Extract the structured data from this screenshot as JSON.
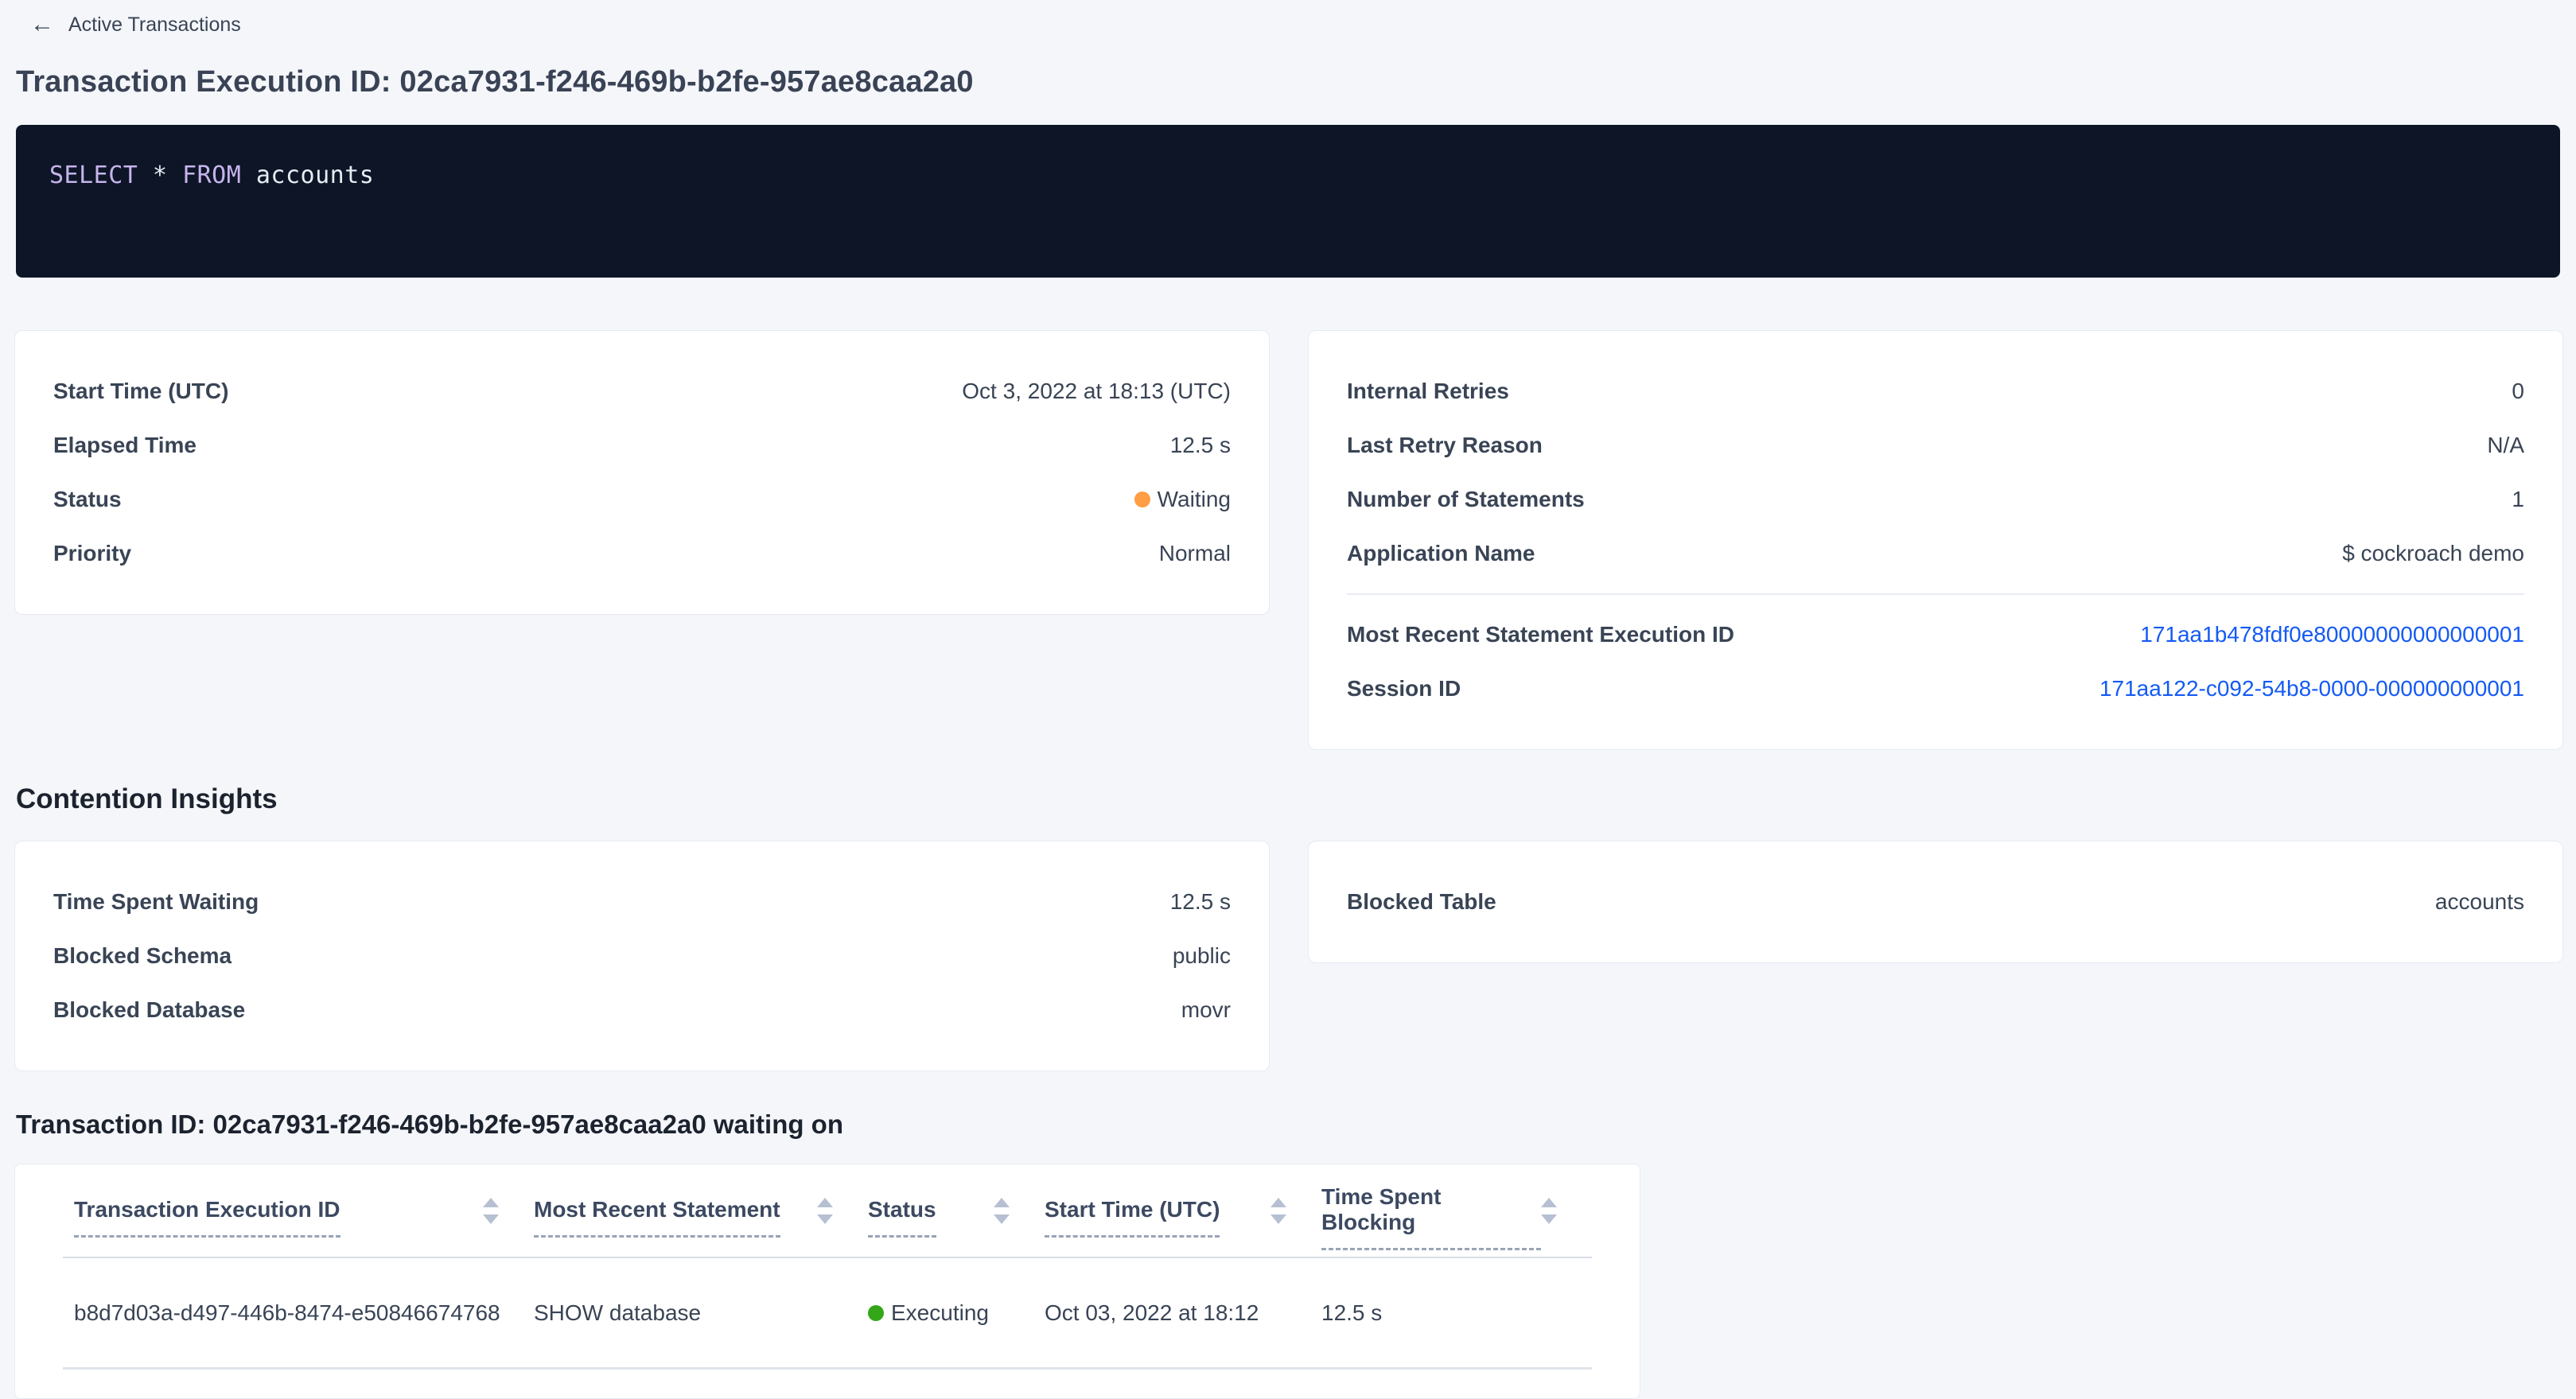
{
  "colors": {
    "link_blue": "#145af5",
    "status_waiting": "#ff9e42",
    "status_executing": "#33a718",
    "code_background": "#0d1527",
    "sql_keyword": "#c6b4eb",
    "sql_text": "#e6ecf2"
  },
  "header": {
    "back_arrow": "←",
    "back_label": "Active Transactions",
    "title": "Transaction Execution ID: 02ca7931-f246-469b-b2fe-957ae8caa2a0"
  },
  "sql": {
    "parts": [
      "SELECT",
      " * ",
      "FROM",
      " accounts"
    ]
  },
  "summary_left": {
    "rows": [
      {
        "label": "Start Time (UTC)",
        "value": "Oct 3, 2022 at 18:13 (UTC)"
      },
      {
        "label": "Elapsed Time",
        "value": "12.5 s"
      },
      {
        "label": "Status",
        "value": "Waiting"
      },
      {
        "label": "Priority",
        "value": "Normal"
      }
    ]
  },
  "summary_right": {
    "rows": [
      {
        "label": "Internal Retries",
        "value": "0"
      },
      {
        "label": "Last Retry Reason",
        "value": "N/A"
      },
      {
        "label": "Number of Statements",
        "value": "1"
      },
      {
        "label": "Application Name",
        "value": "$ cockroach demo"
      }
    ],
    "links": [
      {
        "label": "Most Recent Statement Execution ID",
        "value": "171aa1b478fdf0e80000000000000001"
      },
      {
        "label": "Session ID",
        "value": "171aa122-c092-54b8-0000-000000000001"
      }
    ]
  },
  "contention": {
    "title": "Contention Insights",
    "left_rows": [
      {
        "label": "Time Spent Waiting",
        "value": "12.5 s"
      },
      {
        "label": "Blocked Schema",
        "value": "public"
      },
      {
        "label": "Blocked Database",
        "value": "movr"
      }
    ],
    "right_rows": [
      {
        "label": "Blocked Table",
        "value": "accounts"
      }
    ]
  },
  "waiting_on": {
    "title": "Transaction ID: 02ca7931-f246-469b-b2fe-957ae8caa2a0 waiting on",
    "columns": [
      "Transaction Execution ID",
      "Most Recent Statement",
      "Status",
      "Start Time (UTC)",
      "Time Spent Blocking"
    ],
    "rows": [
      {
        "transaction_execution_id": "b8d7d03a-d497-446b-8474-e50846674768",
        "most_recent_statement": "SHOW database",
        "status": "Executing",
        "start_time": "Oct 03, 2022 at 18:12",
        "time_spent_blocking": "12.5 s"
      }
    ]
  }
}
